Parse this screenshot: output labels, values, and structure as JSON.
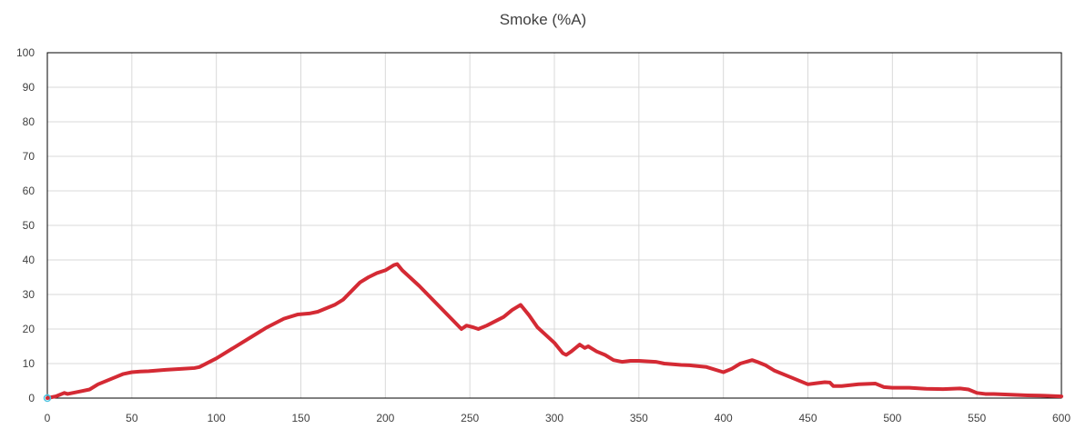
{
  "chart_data": {
    "type": "line",
    "title": "Smoke (%A)",
    "xlabel": "",
    "ylabel": "",
    "xlim": [
      0,
      600
    ],
    "ylim": [
      0,
      100
    ],
    "x_ticks": [
      0,
      50,
      100,
      150,
      200,
      250,
      300,
      350,
      400,
      450,
      500,
      550,
      600
    ],
    "y_ticks": [
      0,
      10,
      20,
      30,
      40,
      50,
      60,
      70,
      80,
      90,
      100
    ],
    "grid": true,
    "legend": "none",
    "series": [
      {
        "color": "#d42a34",
        "points": [
          [
            0,
            0
          ],
          [
            5,
            0.5
          ],
          [
            10,
            1.5
          ],
          [
            12,
            1.2
          ],
          [
            15,
            1.5
          ],
          [
            20,
            2.0
          ],
          [
            25,
            2.5
          ],
          [
            30,
            4.0
          ],
          [
            40,
            6.0
          ],
          [
            45,
            7.0
          ],
          [
            50,
            7.5
          ],
          [
            55,
            7.7
          ],
          [
            60,
            7.8
          ],
          [
            70,
            8.2
          ],
          [
            80,
            8.5
          ],
          [
            87,
            8.7
          ],
          [
            90,
            9.0
          ],
          [
            100,
            11.5
          ],
          [
            110,
            14.5
          ],
          [
            120,
            17.5
          ],
          [
            130,
            20.5
          ],
          [
            140,
            23.0
          ],
          [
            148,
            24.2
          ],
          [
            155,
            24.5
          ],
          [
            160,
            25.0
          ],
          [
            170,
            27.0
          ],
          [
            175,
            28.5
          ],
          [
            180,
            31.0
          ],
          [
            185,
            33.5
          ],
          [
            190,
            35.0
          ],
          [
            195,
            36.2
          ],
          [
            200,
            37.0
          ],
          [
            205,
            38.5
          ],
          [
            207,
            38.8
          ],
          [
            210,
            37.0
          ],
          [
            220,
            32.5
          ],
          [
            230,
            27.5
          ],
          [
            240,
            22.5
          ],
          [
            245,
            20.0
          ],
          [
            248,
            21.0
          ],
          [
            252,
            20.5
          ],
          [
            255,
            20.0
          ],
          [
            260,
            21.0
          ],
          [
            270,
            23.5
          ],
          [
            275,
            25.5
          ],
          [
            280,
            27.0
          ],
          [
            285,
            24.0
          ],
          [
            290,
            20.5
          ],
          [
            300,
            16.0
          ],
          [
            305,
            13.0
          ],
          [
            307,
            12.5
          ],
          [
            310,
            13.5
          ],
          [
            315,
            15.5
          ],
          [
            318,
            14.5
          ],
          [
            320,
            15.0
          ],
          [
            325,
            13.5
          ],
          [
            330,
            12.5
          ],
          [
            335,
            11.0
          ],
          [
            340,
            10.5
          ],
          [
            345,
            10.8
          ],
          [
            350,
            10.8
          ],
          [
            360,
            10.5
          ],
          [
            365,
            10.0
          ],
          [
            375,
            9.6
          ],
          [
            380,
            9.5
          ],
          [
            390,
            9.0
          ],
          [
            400,
            7.5
          ],
          [
            405,
            8.5
          ],
          [
            410,
            10.0
          ],
          [
            417,
            11.0
          ],
          [
            420,
            10.5
          ],
          [
            425,
            9.5
          ],
          [
            430,
            8.0
          ],
          [
            440,
            6.0
          ],
          [
            450,
            4.0
          ],
          [
            455,
            4.3
          ],
          [
            460,
            4.6
          ],
          [
            463,
            4.5
          ],
          [
            465,
            3.5
          ],
          [
            470,
            3.5
          ],
          [
            480,
            4.0
          ],
          [
            490,
            4.2
          ],
          [
            495,
            3.2
          ],
          [
            500,
            3.0
          ],
          [
            510,
            3.0
          ],
          [
            520,
            2.7
          ],
          [
            530,
            2.6
          ],
          [
            540,
            2.8
          ],
          [
            545,
            2.5
          ],
          [
            550,
            1.5
          ],
          [
            555,
            1.2
          ],
          [
            560,
            1.2
          ],
          [
            570,
            1.0
          ],
          [
            580,
            0.8
          ],
          [
            590,
            0.7
          ],
          [
            595,
            0.6
          ],
          [
            600,
            0.5
          ]
        ]
      }
    ]
  },
  "colors": {
    "grid": "#d9d9d9",
    "frame": "#000000",
    "line": "#d42a34",
    "start_marker": "#4fc3e0"
  }
}
